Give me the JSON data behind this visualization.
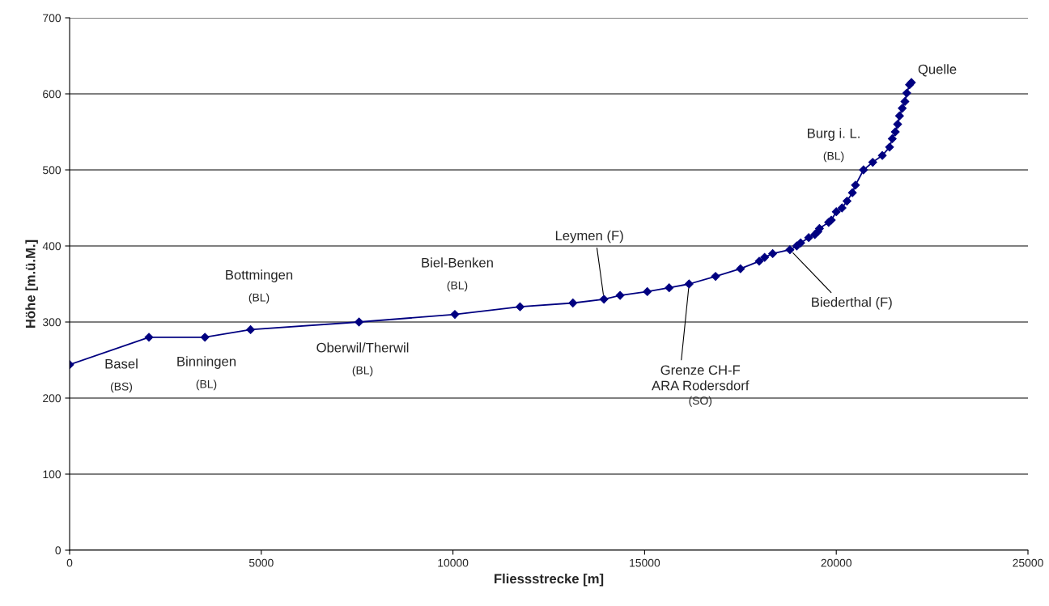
{
  "chart_data": {
    "type": "line",
    "xlabel": "Fliessstrecke [m]",
    "ylabel": "Höhe [m.ü.M.]",
    "x": [
      0,
      2070,
      3530,
      4720,
      7550,
      10050,
      11750,
      13130,
      13940,
      14360,
      15070,
      15640,
      16160,
      16850,
      17500,
      17990,
      18130,
      18340,
      18790,
      18970,
      19070,
      19280,
      19440,
      19520,
      19560,
      19800,
      19870,
      20000,
      20150,
      20280,
      20420,
      20500,
      20710,
      20950,
      21200,
      21390,
      21460,
      21540,
      21600,
      21650,
      21720,
      21790,
      21840,
      21910,
      21960
    ],
    "series": [
      {
        "color": "#000080",
        "values": [
          244,
          280,
          280,
          290,
          300,
          310,
          320,
          325,
          330,
          335,
          340,
          345,
          350,
          360,
          370,
          380,
          385,
          390,
          395,
          400,
          404,
          411,
          415,
          419,
          423,
          431,
          434,
          445,
          450,
          459,
          470,
          480,
          500,
          510,
          519,
          530,
          541,
          550,
          560,
          571,
          581,
          590,
          601,
          612,
          615
        ]
      }
    ],
    "xlim": [
      0,
      25000
    ],
    "xticks": [
      0,
      5000,
      10000,
      15000,
      20000,
      25000
    ],
    "ylim": [
      0,
      700
    ],
    "yticks": [
      0,
      100,
      200,
      300,
      400,
      500,
      600,
      700
    ],
    "grid": "y",
    "marker": "diamond",
    "line_style": "solid",
    "legend": false,
    "annotations": [
      "Basel\n(BS)",
      "Binningen\n(BL)",
      "Bottmingen\n(BL)",
      "Oberwil/Therwil\n(BL)",
      "Biel-Benken\n(BL)",
      {
        "text": "Leymen (F)",
        "x": 13940,
        "y": 330
      },
      {
        "text": "Grenze CH-F\nARA Rodersdorf\n(SO)",
        "x": 16160,
        "y": 350
      },
      {
        "text": "Biederthal (F)",
        "x": 18790,
        "y": 395
      },
      "Burg i. L.\n(BL)",
      "Quelle"
    ]
  }
}
